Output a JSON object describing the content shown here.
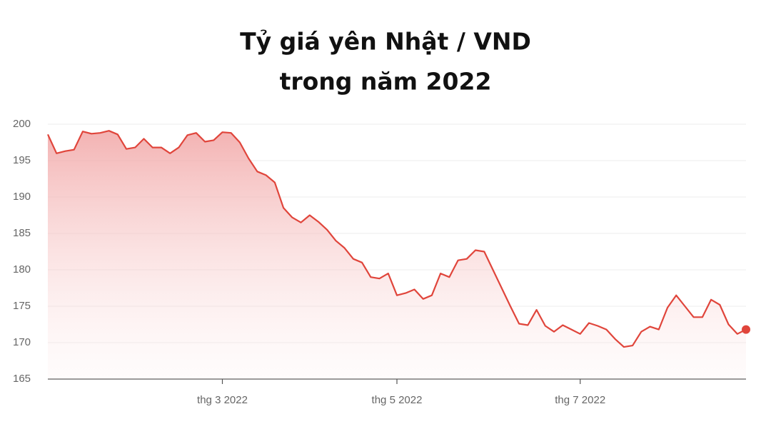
{
  "chart_data": {
    "type": "line",
    "title": [
      "Tỷ giá yên Nhật / VND",
      "trong năm 2022"
    ],
    "categories": [
      null,
      null,
      null,
      null,
      null,
      null,
      null,
      null,
      null,
      null,
      null,
      null,
      null,
      null,
      null,
      null,
      null,
      null,
      null,
      null,
      "thg 3 2022",
      null,
      null,
      null,
      null,
      null,
      null,
      null,
      null,
      null,
      null,
      null,
      null,
      null,
      null,
      null,
      null,
      null,
      null,
      null,
      "thg 5 2022",
      null,
      null,
      null,
      null,
      null,
      null,
      null,
      null,
      null,
      null,
      null,
      null,
      null,
      null,
      null,
      null,
      null,
      null,
      null,
      null,
      "thg 7 2022",
      null,
      null,
      null,
      null,
      null,
      null,
      null,
      null,
      null,
      null,
      null,
      null,
      null,
      null,
      null,
      null,
      null,
      null,
      null
    ],
    "values": [
      198.6,
      196,
      196.3,
      196.5,
      199,
      198.7,
      198.8,
      199.1,
      198.6,
      196.6,
      196.8,
      198,
      196.8,
      196.8,
      196,
      196.8,
      198.5,
      198.8,
      197.6,
      197.8,
      198.9,
      198.8,
      197.5,
      195.3,
      193.5,
      193,
      192,
      188.5,
      187.2,
      186.5,
      187.5,
      186.6,
      185.5,
      184,
      183,
      181.5,
      181,
      179,
      178.8,
      179.5,
      176.5,
      176.8,
      177.3,
      176,
      176.5,
      179.5,
      179,
      181.3,
      181.5,
      182.7,
      182.5,
      180,
      177.5,
      175,
      172.6,
      172.4,
      174.5,
      172.3,
      171.5,
      172.4,
      171.8,
      171.2,
      172.7,
      172.3,
      171.8,
      170.5,
      169.4,
      169.6,
      171.5,
      172.2,
      171.8,
      174.8,
      176.5,
      175,
      173.5,
      173.5,
      175.9,
      175.2,
      172.5,
      171.2,
      171.8
    ],
    "color": "#e0453b",
    "ylim": [
      165,
      200
    ],
    "yticks": [
      165,
      170,
      175,
      180,
      185,
      190,
      195,
      200
    ],
    "grid": true
  }
}
